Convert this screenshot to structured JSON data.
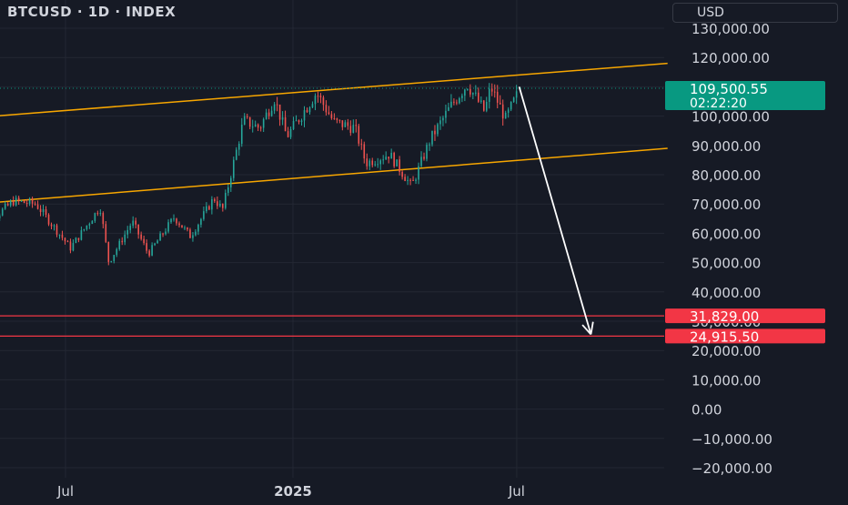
{
  "header": {
    "title": "BTCUSD · 1D · INDEX",
    "currency": "USD"
  },
  "colors": {
    "background": "#161a25",
    "up": "#26a69a",
    "down": "#ef5350",
    "channel": "#f7a600",
    "support": "#f23645",
    "arrow": "#ffffff",
    "price_badge": "#089981",
    "grid": "#232733"
  },
  "price_badge": {
    "price": "109,500.55",
    "countdown": "02:22:20"
  },
  "chart_data": {
    "type": "candlestick",
    "y_axis": {
      "ticks": [
        "130,000.00",
        "120,000.00",
        "110,000.00",
        "100,000.00",
        "90,000.00",
        "80,000.00",
        "70,000.00",
        "60,000.00",
        "50,000.00",
        "40,000.00",
        "30,000.00",
        "20,000.00",
        "10,000.00",
        "0.00",
        "−10,000.00",
        "−20,000.00"
      ],
      "tick_values": [
        130000,
        120000,
        110000,
        100000,
        90000,
        80000,
        70000,
        60000,
        50000,
        40000,
        30000,
        20000,
        10000,
        0,
        -10000,
        -20000
      ],
      "range": [
        -20000,
        130000
      ]
    },
    "x_axis": {
      "ticks": [
        "Jul",
        "2025",
        "Jul"
      ],
      "tick_dates": [
        "2024-07-01",
        "2025-01-01",
        "2025-07-01"
      ],
      "range": [
        "2024-04-19",
        "2025-10-31"
      ]
    },
    "ohlc_waypoints": [
      {
        "date": "2024-04-19",
        "close": 60000
      },
      {
        "date": "2024-05-20",
        "close": 71000
      },
      {
        "date": "2024-06-07",
        "close": 70000
      },
      {
        "date": "2024-07-05",
        "close": 55000
      },
      {
        "date": "2024-07-29",
        "close": 69000
      },
      {
        "date": "2024-08-05",
        "close": 50000
      },
      {
        "date": "2024-08-24",
        "close": 64000
      },
      {
        "date": "2024-09-06",
        "close": 53000
      },
      {
        "date": "2024-09-27",
        "close": 65500
      },
      {
        "date": "2024-10-10",
        "close": 59000
      },
      {
        "date": "2024-10-29",
        "close": 72000
      },
      {
        "date": "2024-11-05",
        "close": 68000
      },
      {
        "date": "2024-11-22",
        "close": 98500
      },
      {
        "date": "2024-12-05",
        "close": 96000
      },
      {
        "date": "2024-12-17",
        "close": 106000
      },
      {
        "date": "2024-12-27",
        "close": 93000
      },
      {
        "date": "2025-01-20",
        "close": 108000
      },
      {
        "date": "2025-02-03",
        "close": 98000
      },
      {
        "date": "2025-02-20",
        "close": 96000
      },
      {
        "date": "2025-03-01",
        "close": 84000
      },
      {
        "date": "2025-03-20",
        "close": 87000
      },
      {
        "date": "2025-04-07",
        "close": 76000
      },
      {
        "date": "2025-04-22",
        "close": 92000
      },
      {
        "date": "2025-05-08",
        "close": 103000
      },
      {
        "date": "2025-05-22",
        "close": 111000
      },
      {
        "date": "2025-06-05",
        "close": 101500
      },
      {
        "date": "2025-06-10",
        "close": 110000
      },
      {
        "date": "2025-06-22",
        "close": 99000
      },
      {
        "date": "2025-07-01",
        "close": 107000
      },
      {
        "date": "2025-07-03",
        "close": 109500
      }
    ],
    "channel_upper": {
      "start": {
        "date": "2024-04-19",
        "price": 99500
      },
      "end": {
        "date": "2025-10-31",
        "price": 118000
      }
    },
    "channel_lower": {
      "start": {
        "date": "2024-04-19",
        "price": 70000
      },
      "end": {
        "date": "2025-10-31",
        "price": 89000
      }
    },
    "horizontal_levels": [
      {
        "label": "31,829.00",
        "value": 31829
      },
      {
        "label": "24,915.50",
        "value": 24915.5
      }
    ],
    "projection_arrow": {
      "start": {
        "date": "2025-07-03",
        "price": 110000
      },
      "end": {
        "date": "2025-08-30",
        "price": 25500
      }
    },
    "last_price": 109500.55,
    "last_price_line": "dotted"
  }
}
